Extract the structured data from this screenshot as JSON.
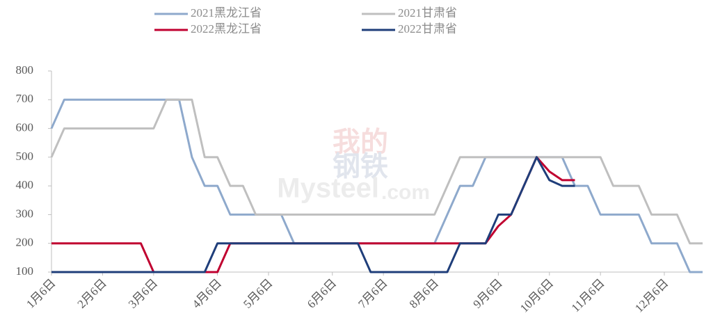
{
  "chart_data": {
    "type": "line",
    "watermark": [
      "我的",
      "钢铁",
      "Mysteel",
      ".com"
    ],
    "categories": [
      "1月6日",
      null,
      null,
      null,
      "2月6日",
      null,
      null,
      null,
      "3月6日",
      null,
      null,
      null,
      null,
      "4月6日",
      null,
      null,
      null,
      "5月6日",
      null,
      null,
      null,
      null,
      "6月6日",
      null,
      null,
      null,
      "7月6日",
      null,
      null,
      null,
      "8月6日",
      null,
      null,
      null,
      null,
      "9月6日",
      null,
      null,
      null,
      "10月6日",
      null,
      null,
      null,
      "11月6日",
      null,
      null,
      null,
      null,
      "12月6日",
      null,
      null,
      null
    ],
    "series": [
      {
        "name": "2021黑龙江省",
        "color": "#8ea9cc",
        "values": [
          600,
          700,
          700,
          700,
          700,
          700,
          700,
          700,
          700,
          700,
          700,
          500,
          400,
          400,
          300,
          300,
          300,
          300,
          300,
          200,
          200,
          200,
          200,
          200,
          200,
          200,
          200,
          200,
          200,
          200,
          200,
          300,
          400,
          400,
          500,
          500,
          500,
          500,
          500,
          500,
          500,
          400,
          400,
          300,
          300,
          300,
          300,
          200,
          200,
          200,
          100,
          100
        ]
      },
      {
        "name": "2021甘肃省",
        "color": "#bfbfbf",
        "values": [
          500,
          600,
          600,
          600,
          600,
          600,
          600,
          600,
          600,
          700,
          700,
          700,
          500,
          500,
          400,
          400,
          300,
          300,
          300,
          300,
          300,
          300,
          300,
          300,
          300,
          300,
          300,
          300,
          300,
          300,
          300,
          400,
          500,
          500,
          500,
          500,
          500,
          500,
          500,
          500,
          500,
          500,
          500,
          500,
          400,
          400,
          400,
          300,
          300,
          300,
          200,
          200
        ]
      },
      {
        "name": "2022黑龙江省",
        "color": "#c00030",
        "values": [
          200,
          200,
          200,
          200,
          200,
          200,
          200,
          200,
          100,
          100,
          100,
          100,
          100,
          100,
          200,
          200,
          200,
          200,
          200,
          200,
          200,
          200,
          200,
          200,
          200,
          200,
          200,
          200,
          200,
          200,
          200,
          200,
          200,
          200,
          200,
          260,
          300,
          400,
          500,
          450,
          420,
          420,
          null,
          null,
          null,
          null,
          null,
          null,
          null,
          null,
          null,
          null
        ]
      },
      {
        "name": "2022甘肃省",
        "color": "#1f3e7a",
        "values": [
          100,
          100,
          100,
          100,
          100,
          100,
          100,
          100,
          100,
          100,
          100,
          100,
          100,
          200,
          200,
          200,
          200,
          200,
          200,
          200,
          200,
          200,
          200,
          200,
          200,
          100,
          100,
          100,
          100,
          100,
          100,
          100,
          200,
          200,
          200,
          300,
          300,
          400,
          500,
          420,
          400,
          400,
          null,
          null,
          null,
          null,
          null,
          null,
          null,
          null,
          null,
          null
        ]
      }
    ],
    "ylim": [
      100,
      800
    ],
    "yticks": [
      100,
      200,
      300,
      400,
      500,
      600,
      700,
      800
    ],
    "grid": false
  }
}
